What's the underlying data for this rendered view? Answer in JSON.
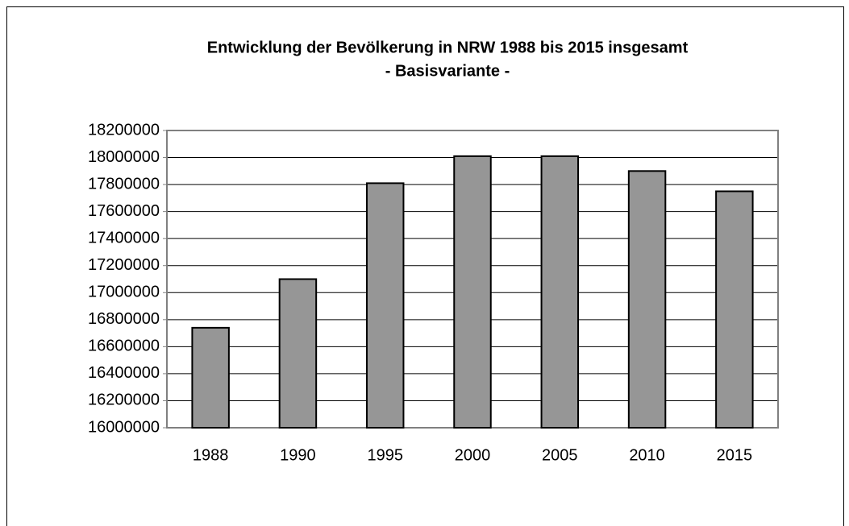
{
  "chart_data": {
    "type": "bar",
    "title": "Entwicklung der Bevölkerung in NRW 1988 bis 2015 insgesamt",
    "subtitle": "- Basisvariante -",
    "categories": [
      "1988",
      "1990",
      "1995",
      "2000",
      "2005",
      "2010",
      "2015"
    ],
    "values": [
      16740000,
      17100000,
      17810000,
      18010000,
      18010000,
      17900000,
      17750000
    ],
    "color": "#969696",
    "ylim": [
      16000000,
      18200000
    ],
    "yticks": [
      16000000,
      16200000,
      16400000,
      16600000,
      16800000,
      17000000,
      17200000,
      17400000,
      17600000,
      17800000,
      18000000,
      18200000
    ],
    "grid": true
  }
}
